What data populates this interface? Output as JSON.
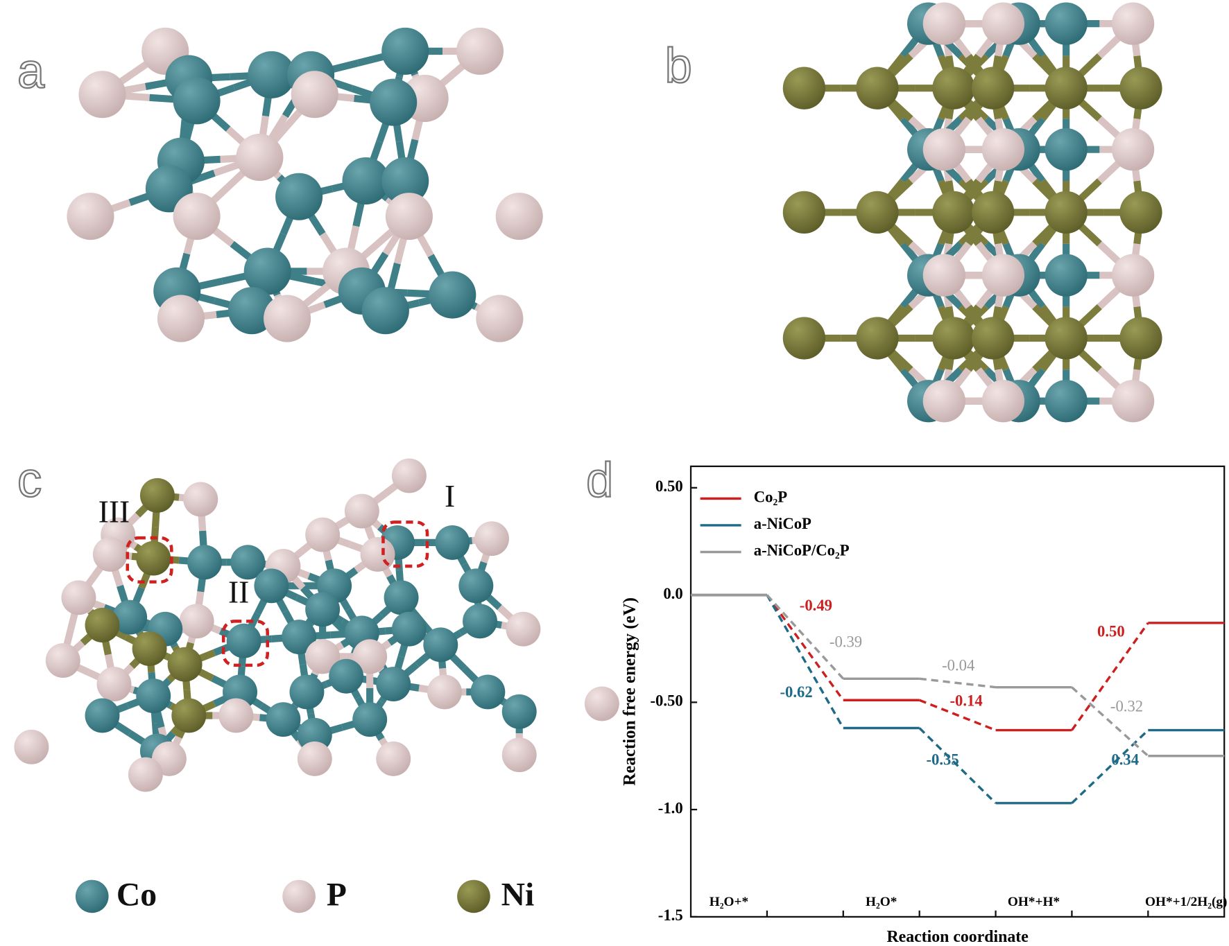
{
  "panels": [
    "a",
    "b",
    "c",
    "d"
  ],
  "site_labels": [
    "III",
    "II",
    "I"
  ],
  "elements": [
    "Co",
    "P",
    "Ni"
  ],
  "chart_data": {
    "type": "line",
    "xlabel": "Reaction coordinate",
    "ylabel": "Reaction free energy (eV)",
    "categories": [
      "H₂O+*",
      "H₂O*",
      "OH*+H*",
      "OH*+1/2H₂(g)"
    ],
    "series": [
      {
        "name": "Co₂P",
        "color": "#cc2020",
        "values": [
          0,
          -0.49,
          -0.63,
          -0.13
        ],
        "step_labels": [
          "-0.49",
          "-0.14",
          "0.50"
        ]
      },
      {
        "name": "a-NiCoP",
        "color": "#1f6a87",
        "values": [
          0,
          -0.62,
          -0.97,
          -0.63
        ],
        "step_labels": [
          "-0.62",
          "-0.35",
          "0.34"
        ]
      },
      {
        "name": "a-NiCoP/Co₂P",
        "color": "#999999",
        "values": [
          0,
          -0.39,
          -0.43,
          -0.75
        ],
        "step_labels": [
          "-0.39",
          "-0.04",
          "-0.32"
        ]
      }
    ],
    "ylim": [
      -1.5,
      0.6
    ],
    "yticks": [
      {
        "value": 0.5,
        "label": "0.50"
      },
      {
        "value": 0,
        "label": "0.0"
      },
      {
        "value": -0.5,
        "label": "-0.50"
      },
      {
        "value": -1,
        "label": "-1.0"
      },
      {
        "value": -1.5,
        "label": "-1.5"
      }
    ]
  }
}
